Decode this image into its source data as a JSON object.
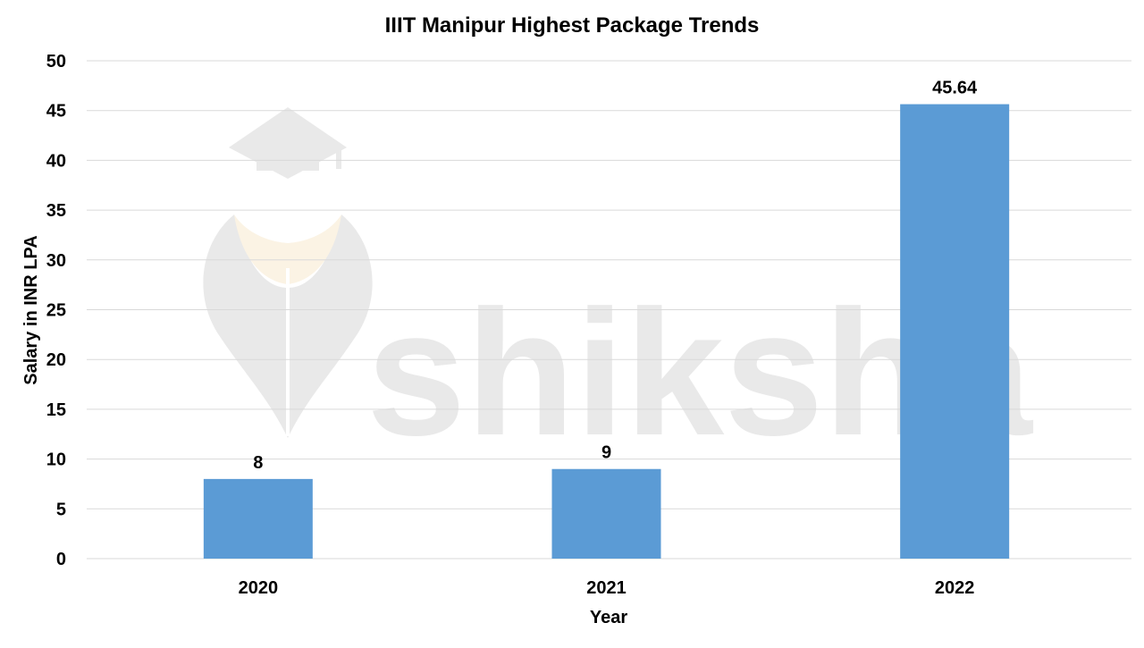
{
  "watermark": {
    "text": "shiksha"
  },
  "colors": {
    "bar": "#5b9bd5",
    "grid": "#d9d9d9",
    "text": "#000000"
  },
  "chart_data": {
    "type": "bar",
    "title": "IIIT Manipur Highest Package Trends",
    "xlabel": "Year",
    "ylabel": "Salary in INR LPA",
    "categories": [
      "2020",
      "2021",
      "2022"
    ],
    "values": [
      8,
      9,
      45.64
    ],
    "data_labels": [
      "8",
      "9",
      "45.64"
    ],
    "ylim": [
      0,
      50
    ],
    "yticks": [
      "0",
      "5",
      "10",
      "15",
      "20",
      "25",
      "30",
      "35",
      "40",
      "45",
      "50"
    ],
    "grid": true,
    "legend": "none"
  }
}
